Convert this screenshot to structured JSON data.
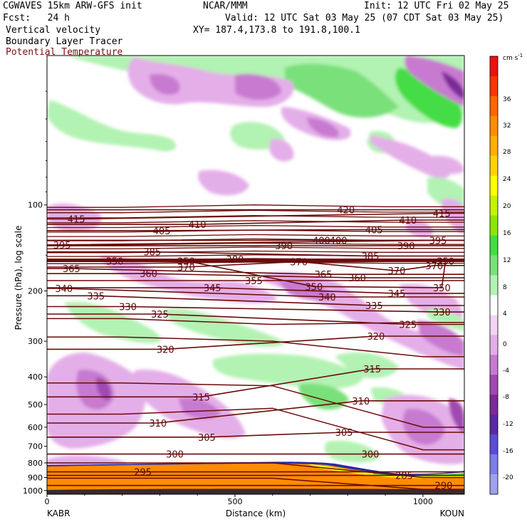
{
  "header": {
    "model": "CGWAVES 15km ARW-GFS init",
    "org": "NCAR/MMM",
    "init": "Init: 12 UTC Fri 02 May 25",
    "fcst": "Fcst:   24 h",
    "valid": "Valid: 12 UTC Sat 03 May 25 (07 CDT Sat 03 May 25)",
    "field1": "Vertical velocity",
    "field2": "Boundary Layer Tracer",
    "field3": "Potential Temperature",
    "xy": "XY= 187.4,173.8 to 191.8,100.1"
  },
  "colors": {
    "theta": "#6b0a0a",
    "field3_text": "#7a1010"
  },
  "colorbar": {
    "units": "cm s",
    "units_exp": "-1",
    "levels": [
      "36",
      "32",
      "28",
      "24",
      "20",
      "16",
      "12",
      "8",
      "4",
      "0",
      "-4",
      "-8",
      "-12",
      "-16",
      "-20"
    ],
    "colors": [
      "#ee1111",
      "#ff3300",
      "#ff6600",
      "#ff8c00",
      "#ffb000",
      "#ffd400",
      "#ffff00",
      "#c6f200",
      "#8ce600",
      "#44dd44",
      "#7ae07a",
      "#b2f2b2",
      "#ffffff",
      "#f4d4f4",
      "#e4aee8",
      "#c77ad0",
      "#a04ab0",
      "#7d2a96",
      "#5a2aa0",
      "#5b4cd8",
      "#7d7de6",
      "#a1a1ee"
    ]
  },
  "chart_data": {
    "type": "contour-cross-section",
    "xlabel": "Distance (km)",
    "ylabel": "Pressure (hPa), log scale",
    "xlim": [
      0,
      1110
    ],
    "x_ticks": [
      "0",
      "500",
      "1000"
    ],
    "x_tick_values": [
      0,
      500,
      1000
    ],
    "y_ticks": [
      "100",
      "200",
      "300",
      "400",
      "500",
      "600",
      "700",
      "800",
      "900",
      "1000"
    ],
    "y_tick_values": [
      100,
      200,
      300,
      400,
      500,
      600,
      700,
      800,
      900,
      1000
    ],
    "ylim": [
      1030,
      30
    ],
    "y_scale": "log",
    "endpoints": {
      "left": "KABR",
      "right": "KOUN"
    },
    "theta_labels": [
      {
        "text": "415",
        "x": 78,
        "p": 112
      },
      {
        "text": "410",
        "x": 400,
        "p": 117
      },
      {
        "text": "420",
        "x": 795,
        "p": 104
      },
      {
        "text": "410",
        "x": 960,
        "p": 113
      },
      {
        "text": "415",
        "x": 1050,
        "p": 107
      },
      {
        "text": "395",
        "x": 40,
        "p": 138
      },
      {
        "text": "405",
        "x": 305,
        "p": 123
      },
      {
        "text": "400",
        "x": 730,
        "p": 133
      },
      {
        "text": "400",
        "x": 775,
        "p": 133
      },
      {
        "text": "405",
        "x": 870,
        "p": 122
      },
      {
        "text": "395",
        "x": 1040,
        "p": 133
      },
      {
        "text": "390",
        "x": 630,
        "p": 139
      },
      {
        "text": "390",
        "x": 955,
        "p": 139
      },
      {
        "text": "385",
        "x": 280,
        "p": 146
      },
      {
        "text": "385",
        "x": 860,
        "p": 151
      },
      {
        "text": "380",
        "x": 500,
        "p": 155
      },
      {
        "text": "370",
        "x": 670,
        "p": 158
      },
      {
        "text": "370",
        "x": 1030,
        "p": 163
      },
      {
        "text": "370",
        "x": 370,
        "p": 165
      },
      {
        "text": "365",
        "x": 65,
        "p": 167
      },
      {
        "text": "360",
        "x": 270,
        "p": 174
      },
      {
        "text": "365",
        "x": 735,
        "p": 175
      },
      {
        "text": "360",
        "x": 825,
        "p": 180
      },
      {
        "text": "370",
        "x": 930,
        "p": 170
      },
      {
        "text": "355",
        "x": 550,
        "p": 184
      },
      {
        "text": "345",
        "x": 440,
        "p": 195
      },
      {
        "text": "350",
        "x": 710,
        "p": 193
      },
      {
        "text": "350",
        "x": 1050,
        "p": 195
      },
      {
        "text": "340",
        "x": 45,
        "p": 196
      },
      {
        "text": "335",
        "x": 130,
        "p": 208
      },
      {
        "text": "340",
        "x": 745,
        "p": 210
      },
      {
        "text": "345",
        "x": 930,
        "p": 204
      },
      {
        "text": "330",
        "x": 215,
        "p": 227
      },
      {
        "text": "325",
        "x": 300,
        "p": 241
      },
      {
        "text": "335",
        "x": 870,
        "p": 225
      },
      {
        "text": "330",
        "x": 1050,
        "p": 237
      },
      {
        "text": "325",
        "x": 960,
        "p": 262
      },
      {
        "text": "320",
        "x": 875,
        "p": 288
      },
      {
        "text": "320",
        "x": 315,
        "p": 320
      },
      {
        "text": "315",
        "x": 865,
        "p": 375
      },
      {
        "text": "315",
        "x": 410,
        "p": 470
      },
      {
        "text": "310",
        "x": 835,
        "p": 485
      },
      {
        "text": "310",
        "x": 295,
        "p": 580
      },
      {
        "text": "305",
        "x": 790,
        "p": 625
      },
      {
        "text": "305",
        "x": 425,
        "p": 650
      },
      {
        "text": "300",
        "x": 340,
        "p": 745
      },
      {
        "text": "300",
        "x": 860,
        "p": 745
      },
      {
        "text": "295",
        "x": 255,
        "p": 860
      },
      {
        "text": "285",
        "x": 950,
        "p": 885
      },
      {
        "text": "290",
        "x": 1055,
        "p": 960
      },
      {
        "text": "350",
        "x": 180,
        "p": 157
      },
      {
        "text": "350",
        "x": 370,
        "p": 157
      },
      {
        "text": "350",
        "x": 1060,
        "p": 157
      }
    ]
  }
}
